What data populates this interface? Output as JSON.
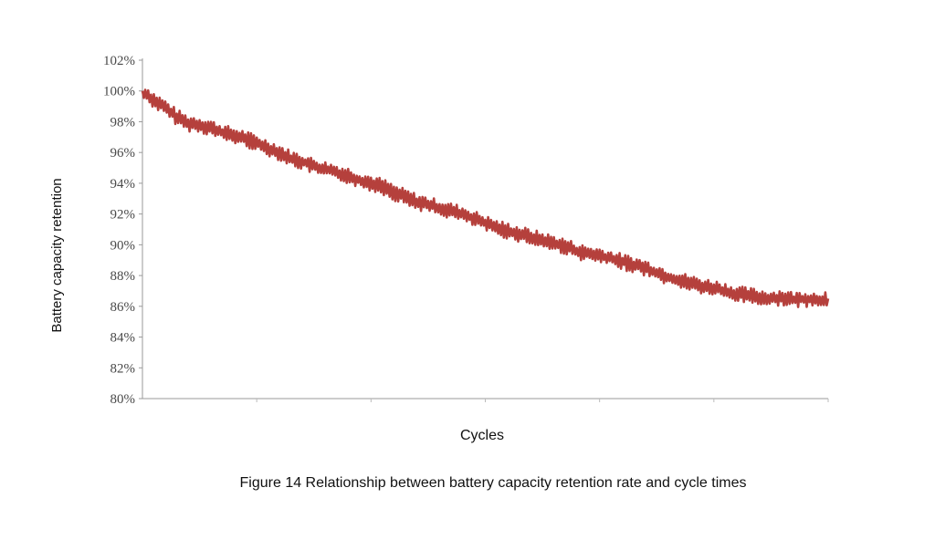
{
  "chart_data": {
    "type": "line",
    "ylabel": "Battery capacity retention",
    "xlabel": "Cycles",
    "y_ticks": [
      "80%",
      "82%",
      "84%",
      "86%",
      "88%",
      "90%",
      "92%",
      "94%",
      "96%",
      "98%",
      "100%",
      "102%"
    ],
    "ylim": [
      80,
      102
    ],
    "xlim": [
      0,
      300
    ],
    "grid": false,
    "series": [
      {
        "color": "#b5403c",
        "x": [
          0,
          5,
          10,
          15,
          20,
          25,
          30,
          35,
          40,
          45,
          50,
          55,
          60,
          65,
          70,
          75,
          80,
          85,
          90,
          95,
          100,
          105,
          110,
          115,
          120,
          125,
          130,
          135,
          140,
          145,
          150,
          155,
          160,
          165,
          170,
          175,
          180,
          185,
          190,
          195,
          200,
          205,
          210,
          215,
          220,
          225,
          230,
          235,
          240,
          245,
          250,
          255,
          260,
          265,
          270,
          275,
          280,
          285,
          290,
          295,
          300
        ],
        "y": [
          100.0,
          99.4,
          98.9,
          98.3,
          97.9,
          97.8,
          97.6,
          97.3,
          97.1,
          96.9,
          96.6,
          96.3,
          96.0,
          95.6,
          95.4,
          95.1,
          94.9,
          94.7,
          94.5,
          94.2,
          94.0,
          93.8,
          93.4,
          93.1,
          92.8,
          92.6,
          92.4,
          92.2,
          92.0,
          91.7,
          91.4,
          91.1,
          90.9,
          90.7,
          90.5,
          90.3,
          90.1,
          89.9,
          89.6,
          89.4,
          89.3,
          89.1,
          88.9,
          88.7,
          88.5,
          88.2,
          87.9,
          87.7,
          87.5,
          87.3,
          87.2,
          87.0,
          86.8,
          86.7,
          86.6,
          86.5,
          86.6,
          86.4,
          86.5,
          86.4,
          86.5
        ]
      }
    ]
  },
  "caption": "Figure 14 Relationship between battery capacity retention rate and cycle times"
}
